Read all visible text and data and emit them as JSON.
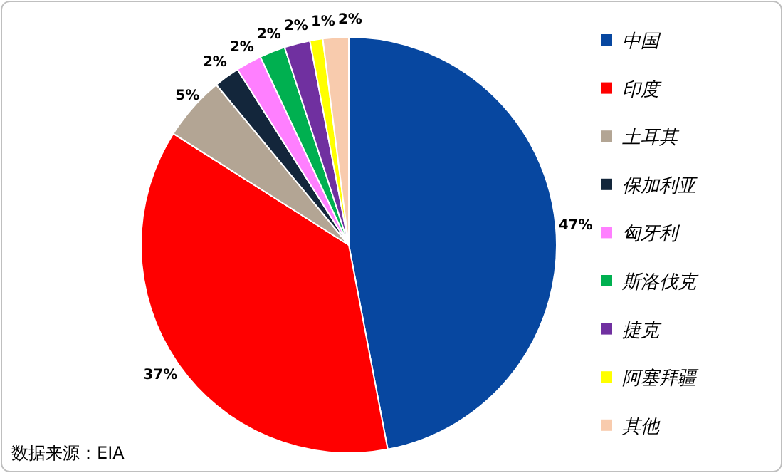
{
  "chart_data": {
    "type": "pie",
    "categories": [
      "中国",
      "印度",
      "土耳其",
      "保加利亚",
      "匈牙利",
      "斯洛伐克",
      "捷克",
      "阿塞拜疆",
      "其他"
    ],
    "values": [
      47,
      37,
      5,
      2,
      2,
      2,
      2,
      1,
      2
    ],
    "colors": [
      "#0747a0",
      "#ff0000",
      "#b3a594",
      "#13263b",
      "#ff7fff",
      "#00b050",
      "#7030a0",
      "#ffff00",
      "#f8cbad"
    ],
    "value_labels": [
      "47%",
      "37%",
      "5%",
      "2%",
      "2%",
      "2%",
      "2%",
      "1%",
      "2%"
    ],
    "legend": "right",
    "annotations": [
      "数据来源：EIA"
    ]
  }
}
